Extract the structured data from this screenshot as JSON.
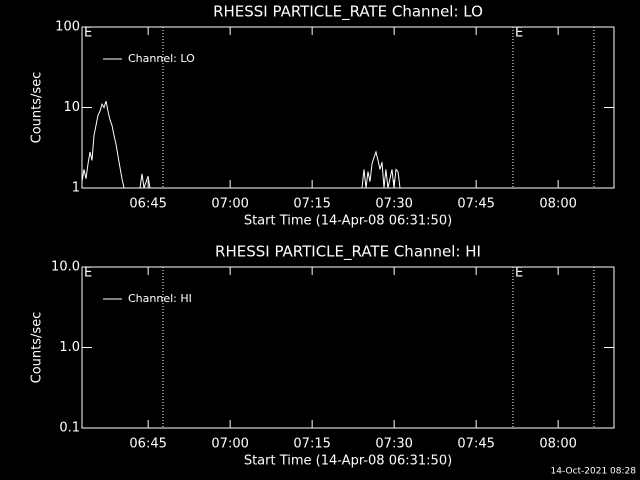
{
  "chart_data": [
    {
      "type": "line",
      "title": "RHESSI PARTICLE_RATE Channel: LO",
      "ylabel": "Counts/sec",
      "xlabel": "Start Time (14-Apr-08 06:31:50)",
      "log_y": true,
      "ylim": [
        1,
        100
      ],
      "yticks": [
        1,
        10,
        100
      ],
      "xlim": [
        "06:32:54",
        "08:10:13"
      ],
      "xticks": [
        "06:45",
        "07:00",
        "07:15",
        "07:30",
        "07:45",
        "08:00"
      ],
      "legend": "upper left",
      "markers": [
        "06:47:43",
        "07:51:44",
        "08:06:33"
      ],
      "annotations": [
        {
          "text": "E",
          "x": "06:32:54"
        },
        {
          "text": "E",
          "x": "07:51:44"
        }
      ],
      "series": [
        {
          "name": "Channel: LO",
          "color": "#ffffff",
          "x": [
            "06:32:54",
            "06:33:16",
            "06:33:38",
            "06:34:00",
            "06:34:22",
            "06:34:44",
            "06:35:06",
            "06:35:28",
            "06:35:50",
            "06:36:12",
            "06:36:34",
            "06:36:55",
            "06:37:17",
            "06:37:39",
            "06:38:01",
            "06:38:23",
            "06:38:45",
            "06:39:07",
            "06:39:29",
            "06:39:51",
            "06:40:13",
            "06:40:35",
            null,
            "06:43:31",
            "06:43:52",
            "06:44:14",
            "06:44:58",
            "06:45:20",
            null,
            "07:24:07",
            "07:24:29",
            "07:24:51",
            "07:25:13",
            "07:25:35",
            "07:25:57",
            "07:26:19",
            "07:26:41",
            "07:27:03",
            "07:27:25",
            "07:27:47",
            "07:28:09",
            "07:28:30",
            "07:28:52",
            "07:29:36",
            "07:29:58",
            "07:30:20",
            "07:30:42",
            "07:31:04"
          ],
          "values": [
            1.2,
            1.7,
            1.3,
            2.0,
            2.8,
            2.2,
            4.5,
            6,
            8,
            9,
            11,
            10,
            12,
            9,
            7,
            6,
            4.5,
            3.5,
            2.5,
            1.8,
            1.3,
            1.0,
            null,
            1,
            1.5,
            1,
            1.4,
            1,
            null,
            1,
            1.7,
            1,
            1.6,
            1.2,
            2.0,
            2.4,
            2.8,
            2.2,
            1.7,
            2.1,
            1,
            1.7,
            1,
            1.7,
            1,
            1.7,
            1.6,
            1
          ]
        }
      ]
    },
    {
      "type": "line",
      "title": "RHESSI PARTICLE_RATE Channel: HI",
      "ylabel": "Counts/sec",
      "xlabel": "Start Time (14-Apr-08 06:31:50)",
      "log_y": true,
      "ylim": [
        0.1,
        10
      ],
      "yticks": [
        0.1,
        {
          "value": 1,
          "label": "1.0"
        },
        {
          "value": 10,
          "label": "10.0"
        }
      ],
      "xlim": [
        "06:32:54",
        "08:10:13"
      ],
      "xticks": [
        "06:45",
        "07:00",
        "07:15",
        "07:30",
        "07:45",
        "08:00"
      ],
      "legend": "upper left",
      "markers": [
        "06:47:43",
        "07:51:44",
        "08:06:33"
      ],
      "annotations": [
        {
          "text": "E",
          "x": "06:32:54"
        },
        {
          "text": "E",
          "x": "07:51:44"
        }
      ],
      "series": [
        {
          "name": "Channel: HI",
          "color": "#ffffff",
          "x": [],
          "values": []
        }
      ]
    }
  ],
  "footer": "14-Oct-2021 08:28"
}
